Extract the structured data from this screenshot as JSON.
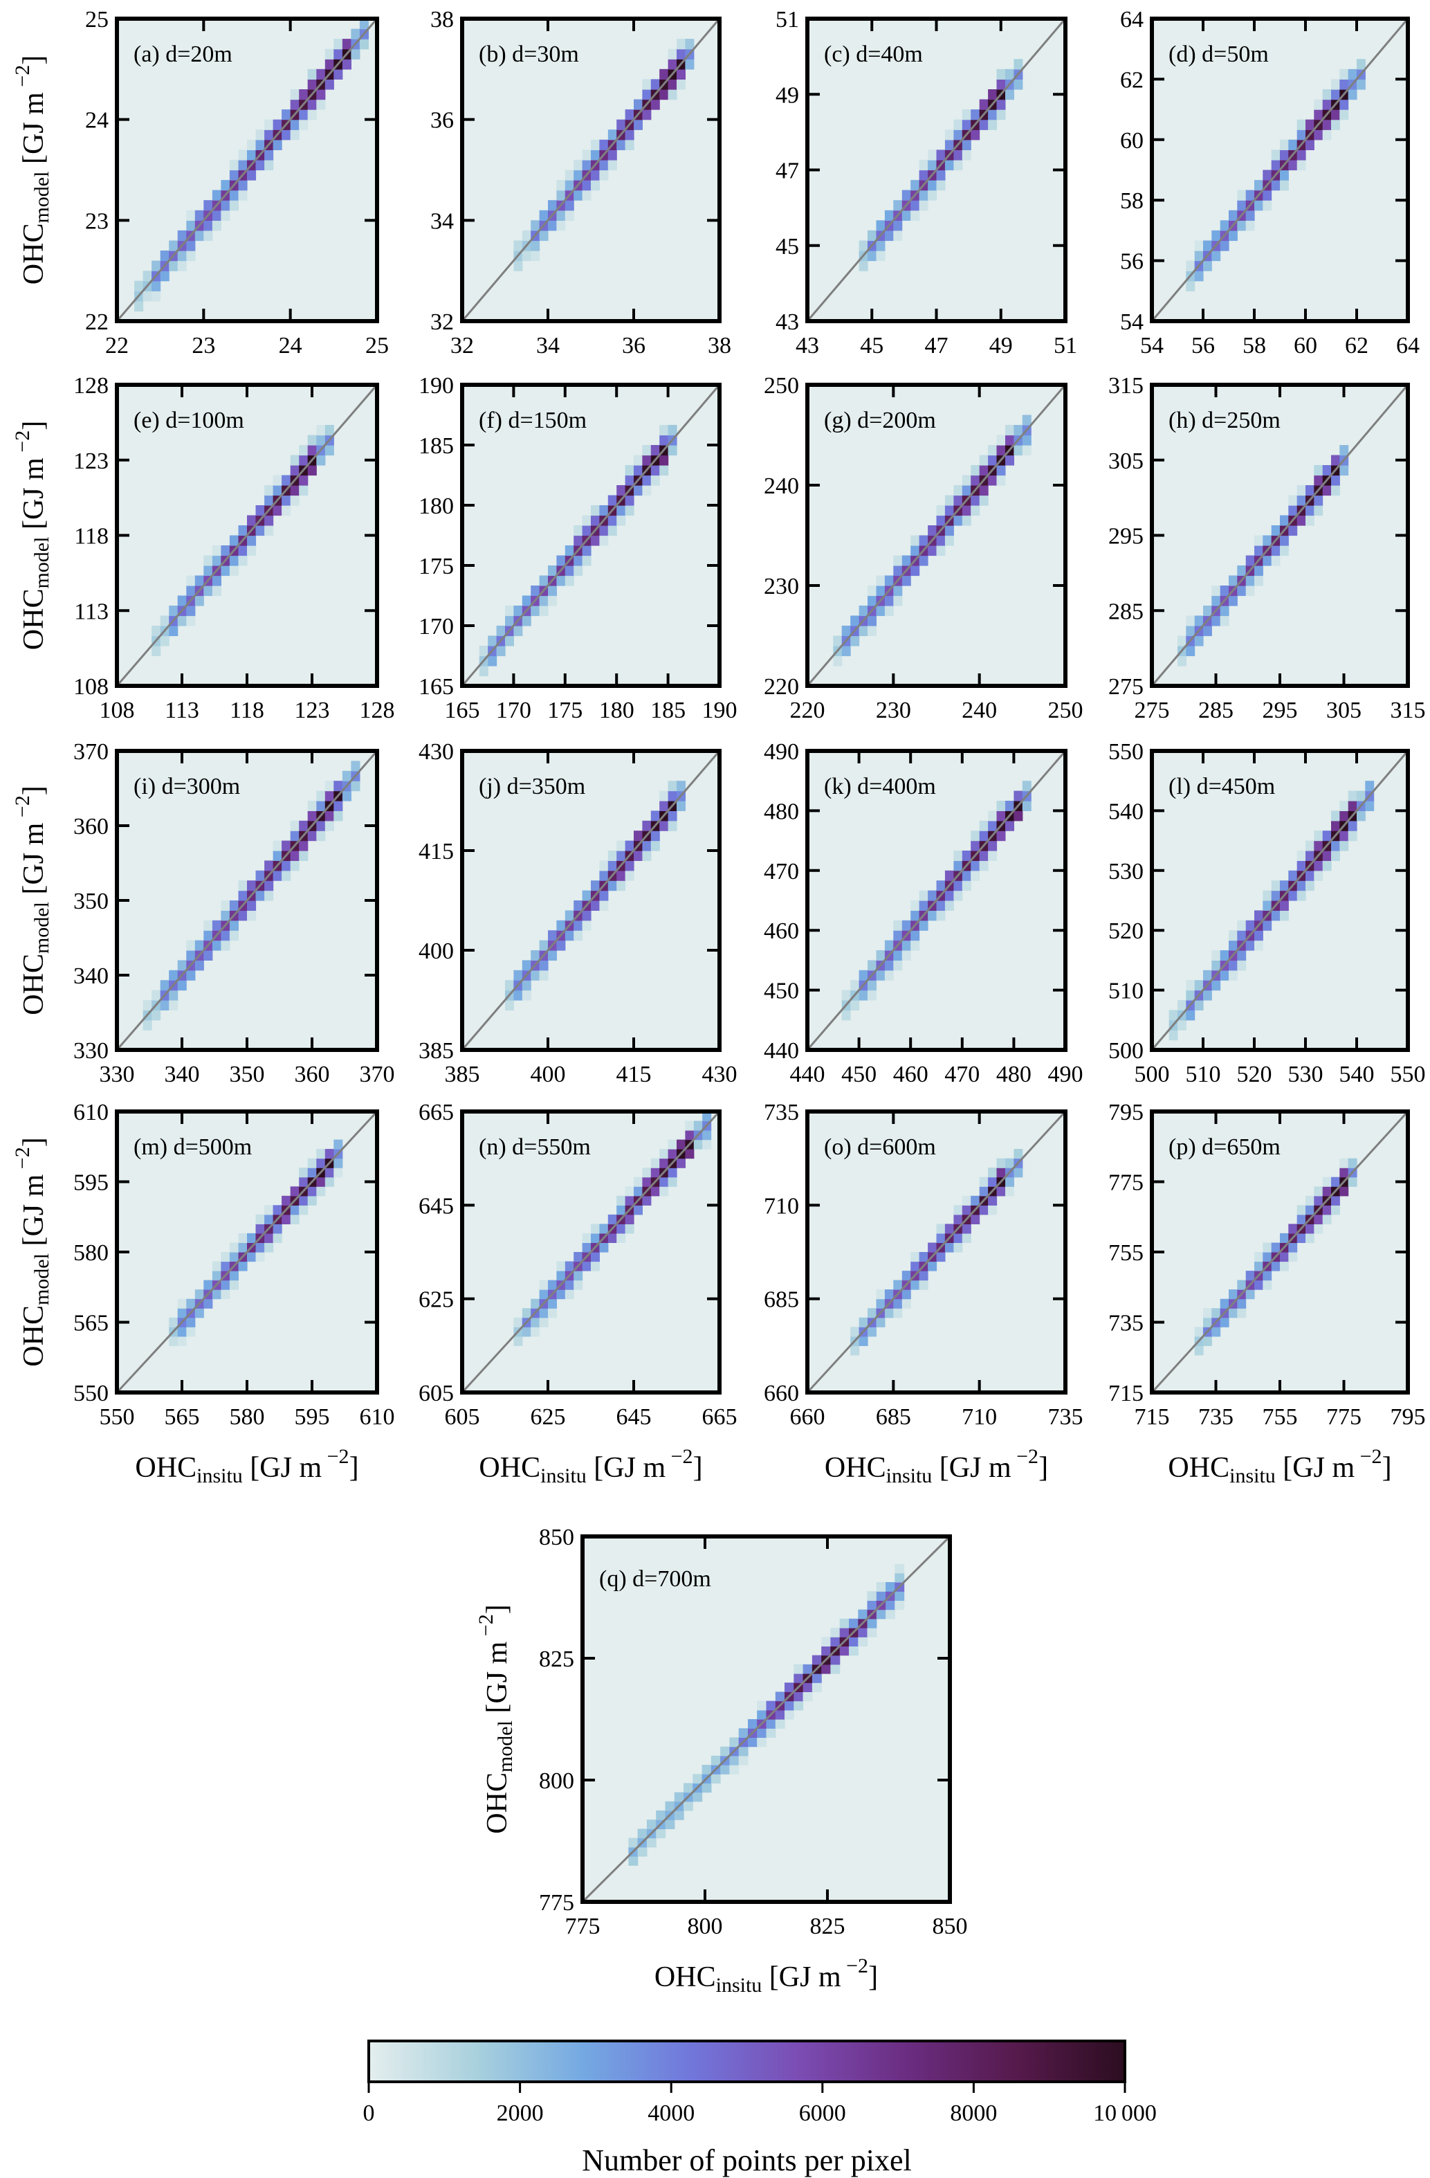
{
  "chart_data": {
    "type": "heatmap",
    "description": "2D histograms of modelled vs in-situ ocean heat content for 17 integration depths",
    "xlabel": {
      "base": "OHC",
      "sub": "insitu",
      "unit": "[GJ m",
      "sup": "−2",
      "close": "]"
    },
    "ylabel": {
      "base": "OHC",
      "sub": "model",
      "unit": "[GJ m",
      "sup": "−2",
      "close": "]"
    },
    "reference_line": "1:1",
    "colorbar": {
      "title": "Number of points per pixel",
      "range": [
        0,
        10000
      ],
      "ticks": [
        0,
        2000,
        4000,
        6000,
        8000,
        10000
      ],
      "tick_labels": [
        "0",
        "2000",
        "4000",
        "6000",
        "8000",
        "10 000"
      ],
      "colors": [
        "#e4eeee",
        "#a8d0dd",
        "#74a8e2",
        "#7176da",
        "#7b4cb2",
        "#6a2c80",
        "#561a4c",
        "#2c0d20"
      ],
      "orientation": "horizontal",
      "placement": "bottom"
    },
    "panels": [
      {
        "label": "(a) d=20m",
        "range": [
          22,
          25
        ],
        "ticks": [
          22,
          23,
          24,
          25
        ],
        "data_extent": [
          22.2,
          24.9
        ],
        "bins": 30
      },
      {
        "label": "(b) d=30m",
        "range": [
          32,
          38
        ],
        "ticks": [
          32,
          34,
          36,
          38
        ],
        "data_extent": [
          33.3,
          37.4
        ],
        "bins": 30
      },
      {
        "label": "(c) d=40m",
        "range": [
          43,
          51
        ],
        "ticks": [
          43,
          45,
          47,
          49,
          51
        ],
        "data_extent": [
          44.5,
          49.6
        ],
        "bins": 30
      },
      {
        "label": "(d) d=50m",
        "range": [
          54,
          64
        ],
        "ticks": [
          54,
          56,
          58,
          60,
          62,
          64
        ],
        "data_extent": [
          55.3,
          62.2
        ],
        "bins": 30
      },
      {
        "label": "(e) d=100m",
        "range": [
          108,
          128
        ],
        "ticks": [
          108,
          113,
          118,
          123,
          128
        ],
        "data_extent": [
          111,
          124.5
        ],
        "bins": 30
      },
      {
        "label": "(f) d=150m",
        "range": [
          165,
          190
        ],
        "ticks": [
          165,
          170,
          175,
          180,
          185,
          190
        ],
        "data_extent": [
          166.5,
          186
        ],
        "bins": 30
      },
      {
        "label": "(g) d=200m",
        "range": [
          220,
          250
        ],
        "ticks": [
          220,
          230,
          240,
          250
        ],
        "data_extent": [
          223,
          246
        ],
        "bins": 30
      },
      {
        "label": "(h) d=250m",
        "range": [
          275,
          315
        ],
        "ticks": [
          275,
          285,
          295,
          305,
          315
        ],
        "data_extent": [
          279,
          306
        ],
        "bins": 30
      },
      {
        "label": "(i) d=300m",
        "range": [
          330,
          370
        ],
        "ticks": [
          330,
          340,
          350,
          360,
          370
        ],
        "data_extent": [
          334.5,
          367
        ],
        "bins": 30
      },
      {
        "label": "(j) d=350m",
        "range": [
          385,
          430
        ],
        "ticks": [
          385,
          400,
          415,
          430
        ],
        "data_extent": [
          392,
          424
        ],
        "bins": 30
      },
      {
        "label": "(k) d=400m",
        "range": [
          440,
          490
        ],
        "ticks": [
          440,
          450,
          460,
          470,
          480,
          490
        ],
        "data_extent": [
          447.5,
          484
        ],
        "bins": 30
      },
      {
        "label": "(l) d=450m",
        "range": [
          500,
          550
        ],
        "ticks": [
          500,
          510,
          520,
          530,
          540,
          550
        ],
        "data_extent": [
          504,
          542.5
        ],
        "bins": 30
      },
      {
        "label": "(m) d=500m",
        "range": [
          550,
          610
        ],
        "ticks": [
          550,
          565,
          580,
          595,
          610
        ],
        "data_extent": [
          562,
          602
        ],
        "bins": 30
      },
      {
        "label": "(n) d=550m",
        "range": [
          605,
          665
        ],
        "ticks": [
          605,
          625,
          645,
          665
        ],
        "data_extent": [
          617,
          662
        ],
        "bins": 30
      },
      {
        "label": "(o) d=600m",
        "range": [
          660,
          735
        ],
        "ticks": [
          660,
          685,
          710,
          735
        ],
        "data_extent": [
          673,
          722
        ],
        "bins": 30
      },
      {
        "label": "(p) d=650m",
        "range": [
          715,
          795
        ],
        "ticks": [
          715,
          735,
          755,
          775,
          795
        ],
        "data_extent": [
          729,
          779
        ],
        "bins": 30
      },
      {
        "label": "(q) d=700m",
        "range": [
          775,
          850
        ],
        "ticks": [
          775,
          800,
          825,
          850
        ],
        "data_extent": [
          785,
          841
        ],
        "bins": 40
      }
    ]
  }
}
